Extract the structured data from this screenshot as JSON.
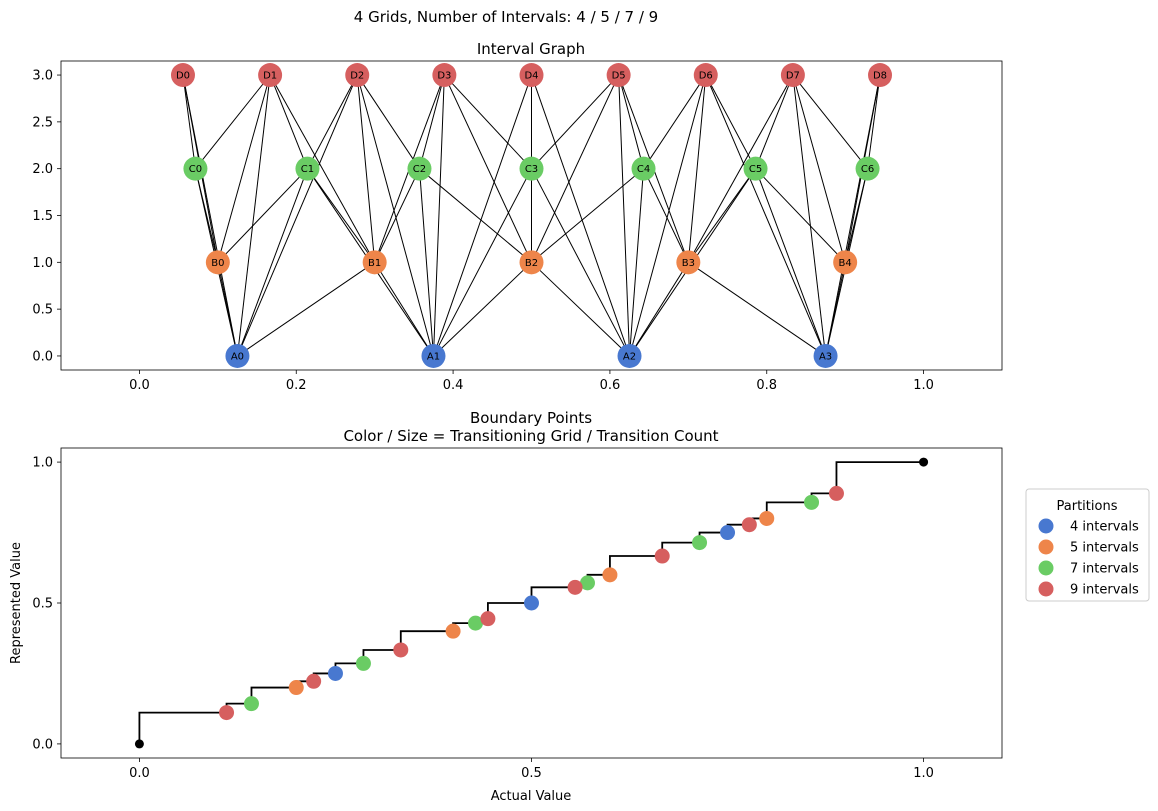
{
  "figure": {
    "title": "4 Grids, Number of Intervals: 4 / 5 / 7 / 9"
  },
  "chart_data": [
    {
      "type": "scatter",
      "name": "interval-graph",
      "title": "Interval Graph",
      "xlabel": "",
      "ylabel": "",
      "xlim": [
        -0.1,
        1.1
      ],
      "ylim": [
        -0.15,
        3.15
      ],
      "xticks": [
        0.0,
        0.2,
        0.4,
        0.6,
        0.8,
        1.0
      ],
      "xtick_labels": [
        "0.0",
        "0.2",
        "0.4",
        "0.6",
        "0.8",
        "1.0"
      ],
      "yticks": [
        0.0,
        0.5,
        1.0,
        1.5,
        2.0,
        2.5,
        3.0
      ],
      "ytick_labels": [
        "0.0",
        "0.5",
        "1.0",
        "1.5",
        "2.0",
        "2.5",
        "3.0"
      ],
      "grids": [
        {
          "prefix": "A",
          "n": 4,
          "y": 0,
          "color": "#4878d0"
        },
        {
          "prefix": "B",
          "n": 5,
          "y": 1,
          "color": "#ee854a"
        },
        {
          "prefix": "C",
          "n": 7,
          "y": 2,
          "color": "#6acc64"
        },
        {
          "prefix": "D",
          "n": 9,
          "y": 3,
          "color": "#d65f5f"
        }
      ],
      "edges": "nodes whose intervals overlap are connected",
      "grid": false
    },
    {
      "type": "scatter",
      "name": "boundary-points",
      "title": "Boundary Points",
      "subtitle": "Color / Size = Transitioning Grid / Transition Count",
      "xlabel": "Actual Value",
      "ylabel": "Represented Value",
      "xlim": [
        -0.1,
        1.1
      ],
      "ylim": [
        -0.05,
        1.05
      ],
      "xticks": [
        0.0,
        0.5,
        1.0
      ],
      "xtick_labels": [
        "0.0",
        "0.5",
        "1.0"
      ],
      "yticks": [
        0.0,
        0.5,
        1.0
      ],
      "ytick_labels": [
        "0.0",
        "0.5",
        "1.0"
      ],
      "step_line": {
        "x": [
          0,
          0.1111,
          0.1429,
          0.2,
          0.2222,
          0.25,
          0.2857,
          0.3333,
          0.4,
          0.4286,
          0.4444,
          0.5,
          0.5556,
          0.5714,
          0.6,
          0.6667,
          0.7143,
          0.75,
          0.7778,
          0.8,
          0.8571,
          0.8889,
          1.0
        ],
        "y": [
          0,
          0.1111,
          0.1429,
          0.2,
          0.2222,
          0.25,
          0.2857,
          0.3333,
          0.4,
          0.4286,
          0.4444,
          0.5,
          0.5556,
          0.5714,
          0.6,
          0.6667,
          0.7143,
          0.75,
          0.7778,
          0.8,
          0.8571,
          0.8889,
          1.0
        ],
        "color": "#000000"
      },
      "endpoints": [
        [
          0,
          0
        ],
        [
          1,
          1
        ]
      ],
      "series": [
        {
          "name": "4 intervals",
          "color": "#4878d0",
          "points": [
            [
              0.25,
              0.25
            ],
            [
              0.5,
              0.5
            ],
            [
              0.75,
              0.75
            ]
          ]
        },
        {
          "name": "5 intervals",
          "color": "#ee854a",
          "points": [
            [
              0.2,
              0.2
            ],
            [
              0.4,
              0.4
            ],
            [
              0.6,
              0.6
            ],
            [
              0.8,
              0.8
            ]
          ]
        },
        {
          "name": "7 intervals",
          "color": "#6acc64",
          "points": [
            [
              0.1429,
              0.1429
            ],
            [
              0.2857,
              0.2857
            ],
            [
              0.4286,
              0.4286
            ],
            [
              0.5714,
              0.5714
            ],
            [
              0.7143,
              0.7143
            ],
            [
              0.8571,
              0.8571
            ]
          ]
        },
        {
          "name": "9 intervals",
          "color": "#d65f5f",
          "points": [
            [
              0.1111,
              0.1111
            ],
            [
              0.2222,
              0.2222
            ],
            [
              0.3333,
              0.3333
            ],
            [
              0.4444,
              0.4444
            ],
            [
              0.5556,
              0.5556
            ],
            [
              0.6667,
              0.6667
            ],
            [
              0.7778,
              0.7778
            ],
            [
              0.8889,
              0.8889
            ]
          ]
        }
      ],
      "legend": {
        "title": "Partitions",
        "placement": "outside-right"
      },
      "grid": false
    }
  ]
}
